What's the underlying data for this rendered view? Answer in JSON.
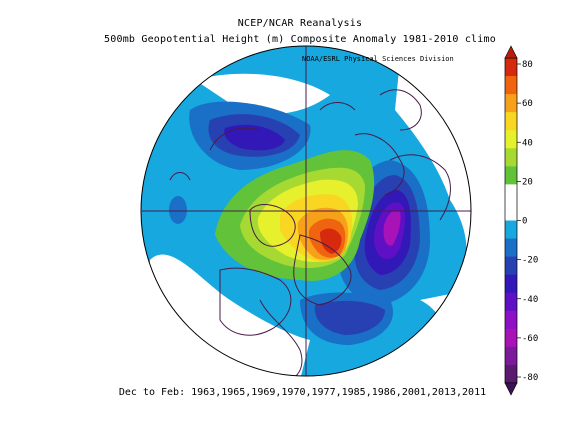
{
  "header": {
    "title_line1": "NCEP/NCAR Reanalysis",
    "title_line2": "500mb Geopotential Height (m) Composite Anomaly 1981-2010 climo",
    "credit": "NOAA/ESRL Physical Sciences Division"
  },
  "footer": {
    "caption": "Dec to Feb: 1963,1965,1969,1970,1977,1985,1986,2001,2013,2011"
  },
  "colorbar": {
    "tick_labels": [
      "80",
      "60",
      "40",
      "20",
      "0",
      "-20",
      "-40",
      "-60",
      "-80"
    ],
    "colors": [
      "#d62a0e",
      "#f0640f",
      "#f7a11a",
      "#f8d622",
      "#e7f02c",
      "#a6d931",
      "#62c33b",
      "#ffffff",
      "#ffffff",
      "#16a8de",
      "#1a70c6",
      "#2841b2",
      "#3318b8",
      "#6010c4",
      "#8e10c4",
      "#a813b8",
      "#7d1a9a",
      "#5a1a6e"
    ]
  },
  "map": {
    "projection": "north-polar-stereographic",
    "background_color": "#ffffff",
    "coastline_color": "#4a1a4a"
  }
}
